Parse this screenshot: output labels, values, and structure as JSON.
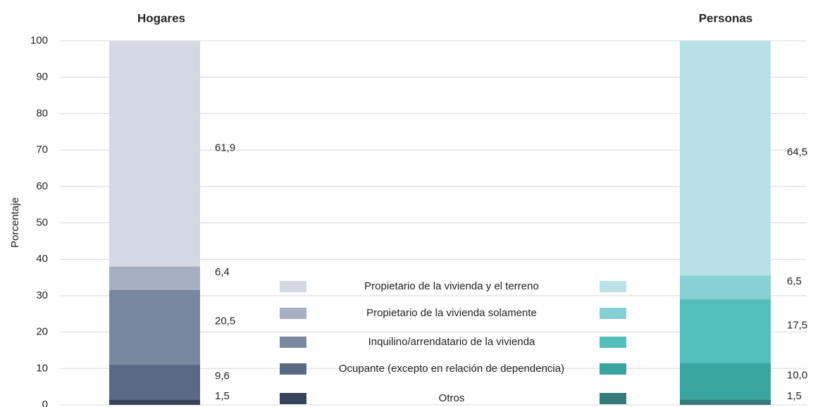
{
  "chart_data": {
    "type": "bar",
    "stacked": true,
    "categories": [
      "Hogares",
      "Personas"
    ],
    "ylabel": "Porcentaje",
    "ylim": [
      0,
      100
    ],
    "yticks": [
      0,
      10,
      20,
      30,
      40,
      50,
      60,
      70,
      80,
      90,
      100
    ],
    "grid": true,
    "series": [
      {
        "name": "Propietario de la vivienda y el terreno",
        "colors": [
          "#d3d8e3",
          "#b9e1e6"
        ],
        "values": [
          61.9,
          64.5
        ],
        "value_labels": [
          "61,9",
          "64,5"
        ]
      },
      {
        "name": "Propietario de la vivienda solamente",
        "colors": [
          "#a6b0c2",
          "#86cfd3"
        ],
        "values": [
          6.4,
          6.5
        ],
        "value_labels": [
          "6,4",
          "6,5"
        ]
      },
      {
        "name": "Inquilino/arrendatario de la vivienda",
        "colors": [
          "#7a889f",
          "#55bfbb"
        ],
        "values": [
          20.5,
          17.5
        ],
        "value_labels": [
          "20,5",
          "17,5"
        ]
      },
      {
        "name": "Ocupante (excepto en relación de dependencia)",
        "colors": [
          "#5a6a85",
          "#3aa59e"
        ],
        "values": [
          9.6,
          10.0
        ],
        "value_labels": [
          "9,6",
          "10,0"
        ]
      },
      {
        "name": "Otros",
        "colors": [
          "#36435a",
          "#357b79"
        ],
        "values": [
          1.5,
          1.5
        ],
        "value_labels": [
          "1,5",
          "1,5"
        ]
      }
    ]
  }
}
